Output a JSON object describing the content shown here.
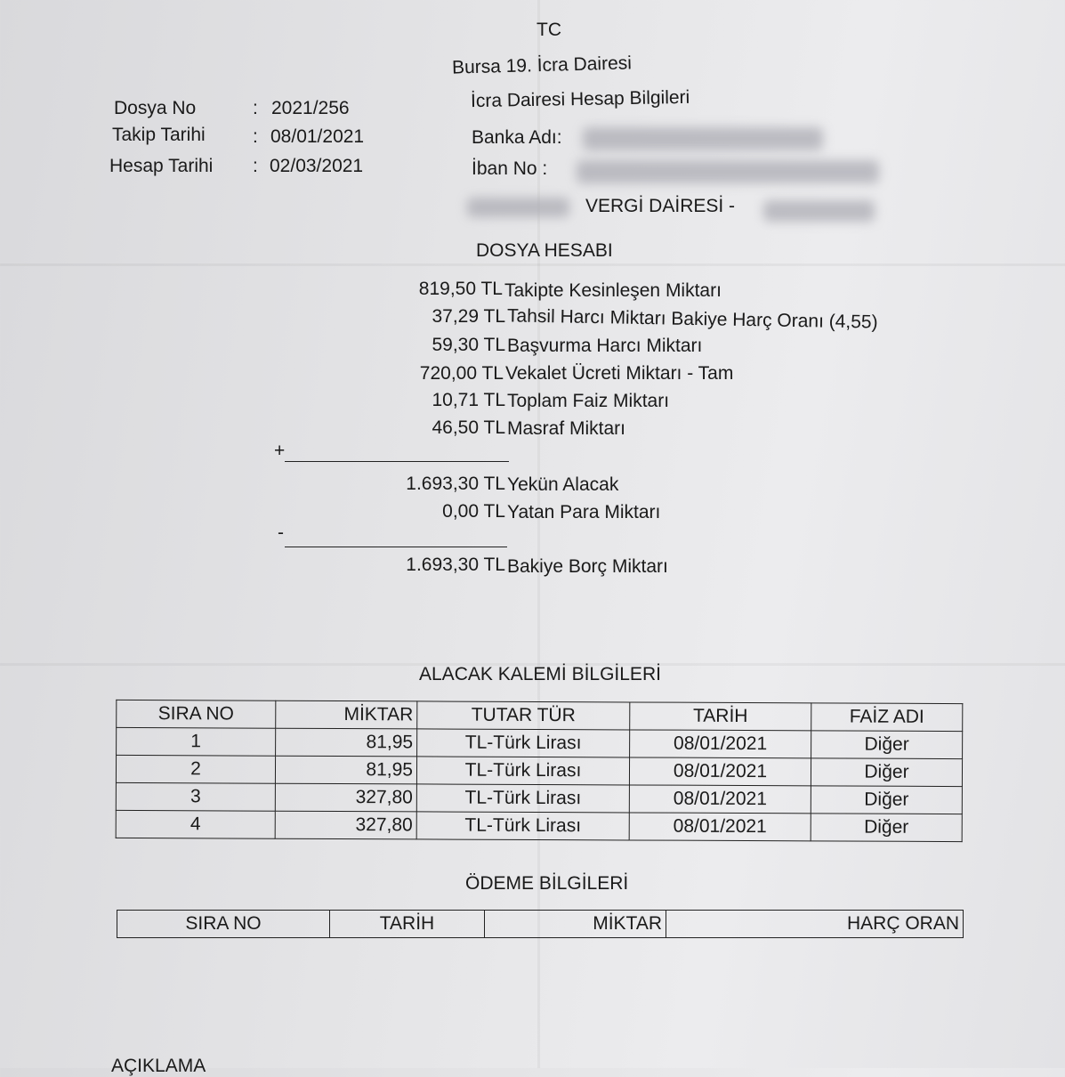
{
  "header": {
    "tc": "TC",
    "office": "Bursa 19. İcra Dairesi",
    "account_info": "İcra Dairesi Hesap Bilgileri",
    "bank_label": "Banka Adı:",
    "iban_label": "İban No :",
    "tax_office": "VERGİ DAİRESİ -"
  },
  "file_info": [
    {
      "label": "Dosya No",
      "value": "2021/256"
    },
    {
      "label": "Takip Tarihi",
      "value": "08/01/2021"
    },
    {
      "label": "Hesap Tarihi",
      "value": "02/03/2021"
    }
  ],
  "dosya_hesabi": {
    "title": "DOSYA HESABI",
    "lines": [
      {
        "amount": "819,50 TL",
        "label": "Takipte Kesinleşen Miktarı"
      },
      {
        "amount": "37,29 TL",
        "label": "Tahsil Harcı Miktarı  Bakiye Harç Oranı (4,55)"
      },
      {
        "amount": "59,30 TL",
        "label": "Başvurma Harcı Miktarı"
      },
      {
        "amount": "720,00 TL",
        "label": "Vekalet Ücreti Miktarı - Tam"
      },
      {
        "amount": "10,71 TL",
        "label": "Toplam Faiz Miktarı"
      },
      {
        "amount": "46,50 TL",
        "label": "Masraf Miktarı"
      }
    ],
    "plus": "+",
    "minus": "-",
    "total": {
      "amount": "1.693,30 TL",
      "label": "Yekün Alacak"
    },
    "paid": {
      "amount": "0,00 TL",
      "label": "Yatan Para Miktarı"
    },
    "balance": {
      "amount": "1.693,30 TL",
      "label": "Bakiye Borç Miktarı"
    }
  },
  "alacak": {
    "title": "ALACAK KALEMİ BİLGİLERİ",
    "columns": [
      "SIRA NO",
      "MİKTAR",
      "TUTAR TÜR",
      "TARİH",
      "FAİZ ADI"
    ],
    "rows": [
      [
        "1",
        "81,95",
        "TL-Türk Lirası",
        "08/01/2021",
        "Diğer"
      ],
      [
        "2",
        "81,95",
        "TL-Türk Lirası",
        "08/01/2021",
        "Diğer"
      ],
      [
        "3",
        "327,80",
        "TL-Türk Lirası",
        "08/01/2021",
        "Diğer"
      ],
      [
        "4",
        "327,80",
        "TL-Türk Lirası",
        "08/01/2021",
        "Diğer"
      ]
    ]
  },
  "odeme": {
    "title": "ÖDEME BİLGİLERİ",
    "columns": [
      "SIRA NO",
      "TARİH",
      "MİKTAR",
      "HARÇ ORAN"
    ]
  },
  "aciklama": "AÇIKLAMA"
}
